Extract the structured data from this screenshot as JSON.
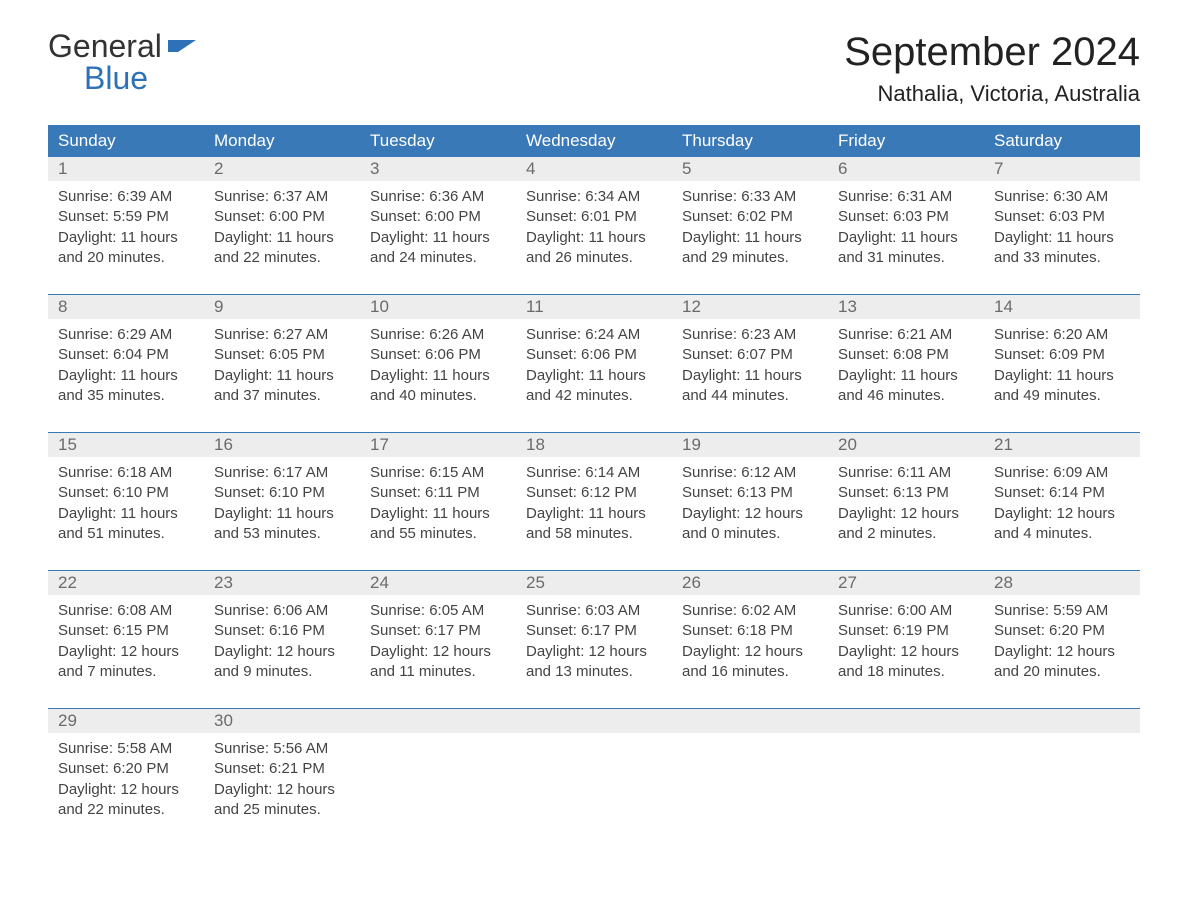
{
  "logo": {
    "word1": "General",
    "word2": "Blue",
    "flag_color": "#2d72b8"
  },
  "title": "September 2024",
  "location": "Nathalia, Victoria, Australia",
  "colors": {
    "header_bg": "#3a79b7",
    "header_text": "#ffffff",
    "daynum_bg": "#ededed",
    "daynum_text": "#6b6b6b",
    "body_text": "#444444",
    "rule": "#3a79b7",
    "logo_blue": "#2d72b8",
    "page_bg": "#ffffff"
  },
  "day_headers": [
    "Sunday",
    "Monday",
    "Tuesday",
    "Wednesday",
    "Thursday",
    "Friday",
    "Saturday"
  ],
  "labels": {
    "sunrise": "Sunrise:",
    "sunset": "Sunset:",
    "daylight": "Daylight:"
  },
  "weeks": [
    [
      {
        "n": "1",
        "sunrise": "6:39 AM",
        "sunset": "5:59 PM",
        "daylight": "11 hours and 20 minutes."
      },
      {
        "n": "2",
        "sunrise": "6:37 AM",
        "sunset": "6:00 PM",
        "daylight": "11 hours and 22 minutes."
      },
      {
        "n": "3",
        "sunrise": "6:36 AM",
        "sunset": "6:00 PM",
        "daylight": "11 hours and 24 minutes."
      },
      {
        "n": "4",
        "sunrise": "6:34 AM",
        "sunset": "6:01 PM",
        "daylight": "11 hours and 26 minutes."
      },
      {
        "n": "5",
        "sunrise": "6:33 AM",
        "sunset": "6:02 PM",
        "daylight": "11 hours and 29 minutes."
      },
      {
        "n": "6",
        "sunrise": "6:31 AM",
        "sunset": "6:03 PM",
        "daylight": "11 hours and 31 minutes."
      },
      {
        "n": "7",
        "sunrise": "6:30 AM",
        "sunset": "6:03 PM",
        "daylight": "11 hours and 33 minutes."
      }
    ],
    [
      {
        "n": "8",
        "sunrise": "6:29 AM",
        "sunset": "6:04 PM",
        "daylight": "11 hours and 35 minutes."
      },
      {
        "n": "9",
        "sunrise": "6:27 AM",
        "sunset": "6:05 PM",
        "daylight": "11 hours and 37 minutes."
      },
      {
        "n": "10",
        "sunrise": "6:26 AM",
        "sunset": "6:06 PM",
        "daylight": "11 hours and 40 minutes."
      },
      {
        "n": "11",
        "sunrise": "6:24 AM",
        "sunset": "6:06 PM",
        "daylight": "11 hours and 42 minutes."
      },
      {
        "n": "12",
        "sunrise": "6:23 AM",
        "sunset": "6:07 PM",
        "daylight": "11 hours and 44 minutes."
      },
      {
        "n": "13",
        "sunrise": "6:21 AM",
        "sunset": "6:08 PM",
        "daylight": "11 hours and 46 minutes."
      },
      {
        "n": "14",
        "sunrise": "6:20 AM",
        "sunset": "6:09 PM",
        "daylight": "11 hours and 49 minutes."
      }
    ],
    [
      {
        "n": "15",
        "sunrise": "6:18 AM",
        "sunset": "6:10 PM",
        "daylight": "11 hours and 51 minutes."
      },
      {
        "n": "16",
        "sunrise": "6:17 AM",
        "sunset": "6:10 PM",
        "daylight": "11 hours and 53 minutes."
      },
      {
        "n": "17",
        "sunrise": "6:15 AM",
        "sunset": "6:11 PM",
        "daylight": "11 hours and 55 minutes."
      },
      {
        "n": "18",
        "sunrise": "6:14 AM",
        "sunset": "6:12 PM",
        "daylight": "11 hours and 58 minutes."
      },
      {
        "n": "19",
        "sunrise": "6:12 AM",
        "sunset": "6:13 PM",
        "daylight": "12 hours and 0 minutes."
      },
      {
        "n": "20",
        "sunrise": "6:11 AM",
        "sunset": "6:13 PM",
        "daylight": "12 hours and 2 minutes."
      },
      {
        "n": "21",
        "sunrise": "6:09 AM",
        "sunset": "6:14 PM",
        "daylight": "12 hours and 4 minutes."
      }
    ],
    [
      {
        "n": "22",
        "sunrise": "6:08 AM",
        "sunset": "6:15 PM",
        "daylight": "12 hours and 7 minutes."
      },
      {
        "n": "23",
        "sunrise": "6:06 AM",
        "sunset": "6:16 PM",
        "daylight": "12 hours and 9 minutes."
      },
      {
        "n": "24",
        "sunrise": "6:05 AM",
        "sunset": "6:17 PM",
        "daylight": "12 hours and 11 minutes."
      },
      {
        "n": "25",
        "sunrise": "6:03 AM",
        "sunset": "6:17 PM",
        "daylight": "12 hours and 13 minutes."
      },
      {
        "n": "26",
        "sunrise": "6:02 AM",
        "sunset": "6:18 PM",
        "daylight": "12 hours and 16 minutes."
      },
      {
        "n": "27",
        "sunrise": "6:00 AM",
        "sunset": "6:19 PM",
        "daylight": "12 hours and 18 minutes."
      },
      {
        "n": "28",
        "sunrise": "5:59 AM",
        "sunset": "6:20 PM",
        "daylight": "12 hours and 20 minutes."
      }
    ],
    [
      {
        "n": "29",
        "sunrise": "5:58 AM",
        "sunset": "6:20 PM",
        "daylight": "12 hours and 22 minutes."
      },
      {
        "n": "30",
        "sunrise": "5:56 AM",
        "sunset": "6:21 PM",
        "daylight": "12 hours and 25 minutes."
      },
      null,
      null,
      null,
      null,
      null
    ]
  ]
}
